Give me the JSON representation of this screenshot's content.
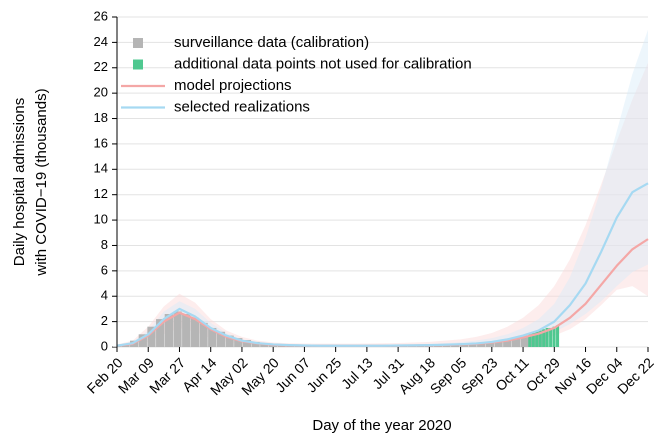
{
  "chart_data": {
    "type": "line",
    "x_label": "Day of the year 2020",
    "y_label": [
      "Daily hospital admissions",
      "with COVID−19 (thousands)"
    ],
    "xlim": [
      51,
      357
    ],
    "ylim": [
      0,
      26
    ],
    "xticks": [
      {
        "value": 51,
        "label": "Feb 20"
      },
      {
        "value": 69,
        "label": "Mar 09"
      },
      {
        "value": 87,
        "label": "Mar 27"
      },
      {
        "value": 105,
        "label": "Apr 14"
      },
      {
        "value": 123,
        "label": "May 02"
      },
      {
        "value": 141,
        "label": "May 20"
      },
      {
        "value": 159,
        "label": "Jun 07"
      },
      {
        "value": 177,
        "label": "Jun 25"
      },
      {
        "value": 195,
        "label": "Jul 13"
      },
      {
        "value": 213,
        "label": "Jul 31"
      },
      {
        "value": 231,
        "label": "Aug 18"
      },
      {
        "value": 249,
        "label": "Sep 05"
      },
      {
        "value": 267,
        "label": "Sep 23"
      },
      {
        "value": 285,
        "label": "Oct 11"
      },
      {
        "value": 303,
        "label": "Oct 29"
      },
      {
        "value": 321,
        "label": "Nov 16"
      },
      {
        "value": 339,
        "label": "Dec 04"
      },
      {
        "value": 357,
        "label": "Dec 22"
      }
    ],
    "yticks": [
      0,
      2,
      4,
      6,
      8,
      10,
      12,
      14,
      16,
      18,
      20,
      22,
      24,
      26
    ],
    "grid": true,
    "legend": "upper left",
    "bars": [
      {
        "name": "surveillance data (calibration)",
        "color": "#b5b5b5",
        "x": [
          51,
          56,
          61,
          66,
          71,
          76,
          81,
          86,
          91,
          96,
          101,
          106,
          111,
          116,
          121,
          126,
          131,
          136,
          141,
          146,
          151,
          156,
          161,
          166,
          171,
          176,
          181,
          186,
          191,
          196,
          201,
          206,
          211,
          216,
          221,
          226,
          231,
          236,
          241,
          246,
          251,
          256,
          261,
          266,
          271,
          276,
          281,
          286,
          291,
          296
        ],
        "values": [
          0.05,
          0.2,
          0.5,
          1.0,
          1.6,
          2.2,
          2.6,
          2.8,
          2.6,
          2.3,
          1.9,
          1.5,
          1.2,
          0.9,
          0.7,
          0.55,
          0.4,
          0.3,
          0.25,
          0.2,
          0.17,
          0.15,
          0.13,
          0.12,
          0.11,
          0.11,
          0.11,
          0.12,
          0.12,
          0.12,
          0.12,
          0.12,
          0.12,
          0.13,
          0.14,
          0.15,
          0.16,
          0.18,
          0.2,
          0.22,
          0.25,
          0.28,
          0.32,
          0.38,
          0.45,
          0.55,
          0.7,
          0.9,
          1.1,
          1.3
        ]
      },
      {
        "name": "additional data points not used for calibration",
        "color": "#4fc890",
        "x": [
          289,
          291,
          293,
          295,
          297,
          299,
          301,
          303,
          305
        ],
        "values": [
          1.0,
          1.1,
          1.2,
          1.3,
          1.4,
          1.5,
          1.5,
          1.6,
          1.7
        ]
      }
    ],
    "x": [
      51,
      60,
      69,
      78,
      87,
      96,
      105,
      114,
      123,
      132,
      141,
      150,
      159,
      168,
      177,
      186,
      195,
      204,
      213,
      222,
      231,
      240,
      249,
      258,
      267,
      276,
      285,
      294,
      303,
      312,
      321,
      330,
      339,
      348,
      357
    ],
    "series": [
      {
        "name": "model projections",
        "color": "#f4a7a6",
        "band_color": "#fbd6d8",
        "values": [
          0.1,
          0.25,
          0.9,
          2.0,
          2.7,
          2.2,
          1.4,
          0.8,
          0.45,
          0.28,
          0.18,
          0.13,
          0.11,
          0.1,
          0.1,
          0.1,
          0.1,
          0.1,
          0.11,
          0.12,
          0.14,
          0.16,
          0.2,
          0.25,
          0.35,
          0.5,
          0.75,
          1.05,
          1.5,
          2.3,
          3.4,
          4.9,
          6.4,
          7.7,
          8.5
        ],
        "band_upper": [
          0.2,
          0.5,
          1.6,
          3.2,
          4.2,
          3.5,
          2.2,
          1.3,
          0.8,
          0.5,
          0.35,
          0.3,
          0.28,
          0.27,
          0.27,
          0.27,
          0.28,
          0.3,
          0.32,
          0.35,
          0.4,
          0.5,
          0.6,
          0.8,
          1.1,
          1.6,
          2.3,
          3.3,
          4.8,
          6.9,
          9.6,
          12.8,
          16.2,
          19.5,
          22.4
        ],
        "band_lower": [
          0,
          0,
          0.4,
          1.0,
          1.5,
          1.2,
          0.7,
          0.4,
          0.2,
          0.1,
          0.05,
          0.03,
          0.02,
          0.02,
          0.02,
          0.02,
          0.02,
          0.02,
          0.03,
          0.04,
          0.05,
          0.07,
          0.09,
          0.12,
          0.15,
          0.25,
          0.4,
          0.6,
          0.9,
          1.4,
          2.2,
          3.3,
          4.5,
          4.8,
          4.0
        ]
      },
      {
        "name": "selected realizations",
        "color": "#a6d9f2",
        "band_color": "#d6ebf9",
        "values": [
          0.1,
          0.3,
          1.0,
          2.2,
          3.0,
          2.4,
          1.5,
          0.9,
          0.5,
          0.3,
          0.2,
          0.15,
          0.12,
          0.1,
          0.1,
          0.1,
          0.1,
          0.1,
          0.12,
          0.13,
          0.15,
          0.18,
          0.22,
          0.28,
          0.4,
          0.6,
          0.9,
          1.3,
          2.0,
          3.3,
          5.0,
          7.5,
          10.2,
          12.2,
          12.9
        ],
        "band_upper": [
          0.2,
          0.4,
          1.3,
          2.8,
          3.6,
          3.0,
          1.9,
          1.1,
          0.6,
          0.4,
          0.28,
          0.22,
          0.2,
          0.18,
          0.18,
          0.18,
          0.18,
          0.19,
          0.2,
          0.22,
          0.25,
          0.3,
          0.38,
          0.5,
          0.7,
          1.0,
          1.5,
          2.2,
          3.4,
          5.5,
          8.6,
          12.5,
          17,
          21.5,
          25
        ],
        "band_lower": [
          0.05,
          0.2,
          0.8,
          1.7,
          2.5,
          2.0,
          1.2,
          0.7,
          0.4,
          0.22,
          0.14,
          0.1,
          0.08,
          0.07,
          0.07,
          0.07,
          0.07,
          0.08,
          0.09,
          0.1,
          0.11,
          0.13,
          0.16,
          0.2,
          0.27,
          0.4,
          0.6,
          0.85,
          1.2,
          1.8,
          2.6,
          3.6,
          4.8,
          5.9,
          6.5
        ]
      }
    ]
  }
}
